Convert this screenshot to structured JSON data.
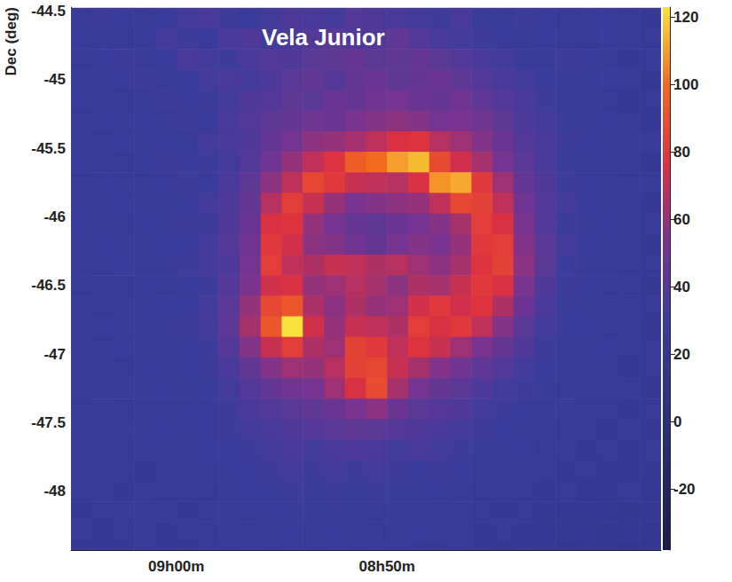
{
  "chart_data": {
    "type": "heatmap",
    "title": "Vela Junior",
    "ylabel": "Dec (deg)",
    "x": [
      544.5,
      543.5,
      542.5,
      541.5,
      540.5,
      539.5,
      538.5,
      537.5,
      536.5,
      535.5,
      534.5,
      533.5,
      532.5,
      531.5,
      530.5,
      529.5,
      528.5,
      527.5,
      526.5,
      525.5,
      524.5,
      523.5,
      522.5,
      521.5,
      520.5,
      519.5,
      518.5,
      517.5
    ],
    "y": [
      -44.55,
      -44.7,
      -44.85,
      -45,
      -45.15,
      -45.3,
      -45.45,
      -45.6,
      -45.75,
      -45.9,
      -46.05,
      -46.2,
      -46.35,
      -46.5,
      -46.65,
      -46.8,
      -46.95,
      -47.1,
      -47.25,
      -47.4,
      -47.55,
      -47.7,
      -47.85,
      -48,
      -48.15,
      -48.3,
      -48.45
    ],
    "values": [
      [
        28,
        32,
        30,
        26,
        30,
        34,
        36,
        32,
        30,
        34,
        38,
        36,
        34,
        40,
        38,
        36,
        34,
        32,
        36,
        30,
        28,
        32,
        30,
        26,
        28,
        30,
        26,
        24
      ],
      [
        30,
        28,
        26,
        30,
        34,
        32,
        30,
        36,
        38,
        34,
        36,
        40,
        42,
        38,
        40,
        44,
        40,
        36,
        34,
        32,
        30,
        28,
        30,
        28,
        26,
        30,
        28,
        26
      ],
      [
        26,
        30,
        32,
        28,
        30,
        36,
        34,
        32,
        36,
        40,
        38,
        42,
        44,
        46,
        42,
        44,
        46,
        42,
        40,
        36,
        34,
        30,
        28,
        32,
        30,
        28,
        24,
        26
      ],
      [
        28,
        26,
        30,
        32,
        28,
        30,
        34,
        36,
        34,
        38,
        42,
        44,
        40,
        46,
        48,
        44,
        46,
        48,
        44,
        40,
        36,
        34,
        30,
        28,
        26,
        30,
        28,
        22
      ],
      [
        30,
        28,
        26,
        28,
        32,
        30,
        32,
        34,
        38,
        40,
        44,
        42,
        48,
        46,
        50,
        52,
        48,
        46,
        50,
        44,
        40,
        36,
        32,
        30,
        28,
        26,
        24,
        26
      ],
      [
        26,
        30,
        28,
        30,
        28,
        32,
        30,
        36,
        40,
        44,
        46,
        50,
        48,
        54,
        56,
        58,
        56,
        52,
        54,
        50,
        44,
        38,
        34,
        30,
        28,
        30,
        26,
        24
      ],
      [
        28,
        26,
        30,
        28,
        30,
        28,
        34,
        36,
        38,
        46,
        52,
        58,
        60,
        64,
        70,
        76,
        78,
        68,
        62,
        56,
        48,
        40,
        36,
        32,
        30,
        28,
        26,
        28
      ],
      [
        30,
        28,
        26,
        30,
        32,
        30,
        32,
        34,
        40,
        50,
        60,
        70,
        78,
        95,
        100,
        110,
        115,
        88,
        74,
        64,
        52,
        42,
        36,
        30,
        28,
        26,
        28,
        24
      ],
      [
        26,
        30,
        28,
        26,
        30,
        32,
        30,
        36,
        44,
        58,
        70,
        86,
        80,
        72,
        70,
        68,
        76,
        108,
        112,
        80,
        62,
        46,
        38,
        32,
        30,
        28,
        26,
        28
      ],
      [
        28,
        26,
        30,
        28,
        28,
        30,
        34,
        38,
        46,
        68,
        82,
        72,
        60,
        54,
        56,
        58,
        60,
        70,
        86,
        84,
        70,
        50,
        40,
        34,
        30,
        28,
        26,
        24
      ],
      [
        30,
        28,
        26,
        30,
        28,
        32,
        32,
        38,
        48,
        76,
        78,
        60,
        52,
        46,
        44,
        48,
        52,
        56,
        64,
        82,
        76,
        54,
        40,
        32,
        28,
        30,
        28,
        26
      ],
      [
        26,
        30,
        28,
        28,
        30,
        30,
        34,
        40,
        50,
        80,
        74,
        58,
        56,
        50,
        46,
        52,
        56,
        54,
        60,
        80,
        82,
        56,
        42,
        34,
        30,
        26,
        28,
        24
      ],
      [
        28,
        26,
        30,
        28,
        28,
        32,
        34,
        38,
        52,
        82,
        70,
        66,
        72,
        70,
        66,
        68,
        62,
        58,
        64,
        78,
        84,
        58,
        42,
        32,
        28,
        28,
        26,
        26
      ],
      [
        26,
        28,
        26,
        30,
        28,
        30,
        32,
        40,
        54,
        74,
        76,
        60,
        62,
        68,
        64,
        58,
        66,
        64,
        72,
        80,
        76,
        54,
        38,
        32,
        30,
        26,
        28,
        24
      ],
      [
        28,
        26,
        28,
        28,
        30,
        30,
        34,
        42,
        60,
        86,
        92,
        66,
        58,
        66,
        60,
        62,
        74,
        80,
        74,
        78,
        66,
        48,
        36,
        30,
        28,
        28,
        26,
        26
      ],
      [
        26,
        30,
        28,
        26,
        28,
        32,
        34,
        44,
        64,
        92,
        125,
        74,
        60,
        72,
        70,
        66,
        82,
        76,
        80,
        70,
        56,
        42,
        34,
        30,
        30,
        26,
        28,
        24
      ],
      [
        28,
        26,
        30,
        28,
        28,
        30,
        32,
        40,
        56,
        72,
        82,
        66,
        62,
        84,
        80,
        70,
        78,
        72,
        62,
        54,
        46,
        38,
        32,
        28,
        28,
        30,
        26,
        26
      ],
      [
        26,
        28,
        26,
        30,
        28,
        30,
        32,
        36,
        46,
        56,
        62,
        60,
        68,
        84,
        86,
        72,
        64,
        56,
        50,
        44,
        40,
        34,
        30,
        28,
        26,
        28,
        24,
        26
      ],
      [
        28,
        26,
        28,
        28,
        30,
        28,
        30,
        34,
        40,
        46,
        50,
        52,
        62,
        76,
        88,
        64,
        52,
        46,
        42,
        38,
        34,
        32,
        28,
        26,
        28,
        26,
        28,
        24
      ],
      [
        26,
        28,
        26,
        28,
        28,
        30,
        30,
        32,
        36,
        40,
        42,
        44,
        48,
        54,
        58,
        48,
        42,
        40,
        38,
        34,
        32,
        30,
        28,
        28,
        26,
        26,
        24,
        26
      ],
      [
        28,
        26,
        28,
        26,
        30,
        28,
        30,
        32,
        34,
        36,
        38,
        40,
        42,
        44,
        42,
        40,
        38,
        36,
        34,
        32,
        30,
        28,
        28,
        26,
        28,
        24,
        26,
        24
      ],
      [
        26,
        28,
        26,
        28,
        26,
        28,
        30,
        30,
        32,
        34,
        36,
        34,
        36,
        38,
        36,
        34,
        36,
        34,
        32,
        30,
        28,
        30,
        26,
        28,
        24,
        26,
        24,
        26
      ],
      [
        28,
        26,
        28,
        24,
        28,
        26,
        28,
        30,
        30,
        32,
        34,
        32,
        34,
        32,
        34,
        32,
        30,
        32,
        30,
        28,
        26,
        28,
        28,
        24,
        26,
        24,
        22,
        24
      ],
      [
        26,
        28,
        24,
        28,
        26,
        28,
        26,
        28,
        30,
        30,
        32,
        30,
        32,
        30,
        32,
        30,
        28,
        30,
        28,
        26,
        28,
        26,
        24,
        26,
        22,
        24,
        26,
        22
      ],
      [
        24,
        26,
        28,
        26,
        28,
        24,
        28,
        26,
        28,
        30,
        28,
        30,
        28,
        30,
        28,
        30,
        28,
        26,
        28,
        26,
        24,
        26,
        24,
        22,
        24,
        22,
        20,
        24
      ],
      [
        26,
        24,
        26,
        28,
        24,
        26,
        26,
        28,
        26,
        28,
        30,
        28,
        30,
        28,
        26,
        28,
        30,
        28,
        26,
        24,
        26,
        24,
        22,
        24,
        22,
        20,
        22,
        20
      ],
      [
        24,
        26,
        24,
        26,
        26,
        24,
        28,
        26,
        28,
        26,
        28,
        26,
        28,
        26,
        28,
        26,
        26,
        24,
        26,
        24,
        22,
        24,
        22,
        20,
        22,
        20,
        18,
        20
      ]
    ],
    "xlim": [
      545,
      517
    ],
    "xticks": [
      {
        "value": 540,
        "label": "09h00m"
      },
      {
        "value": 530,
        "label": "08h50m"
      }
    ],
    "ylim": [
      -48.43,
      -44.47
    ],
    "yticks": [
      -48,
      -47.5,
      -47,
      -46.5,
      -46,
      -45.5,
      -45,
      -44.5
    ],
    "colorbar_lim": [
      -38,
      123
    ],
    "colorbar_ticks": [
      -20,
      0,
      20,
      40,
      60,
      80,
      100,
      120
    ]
  }
}
